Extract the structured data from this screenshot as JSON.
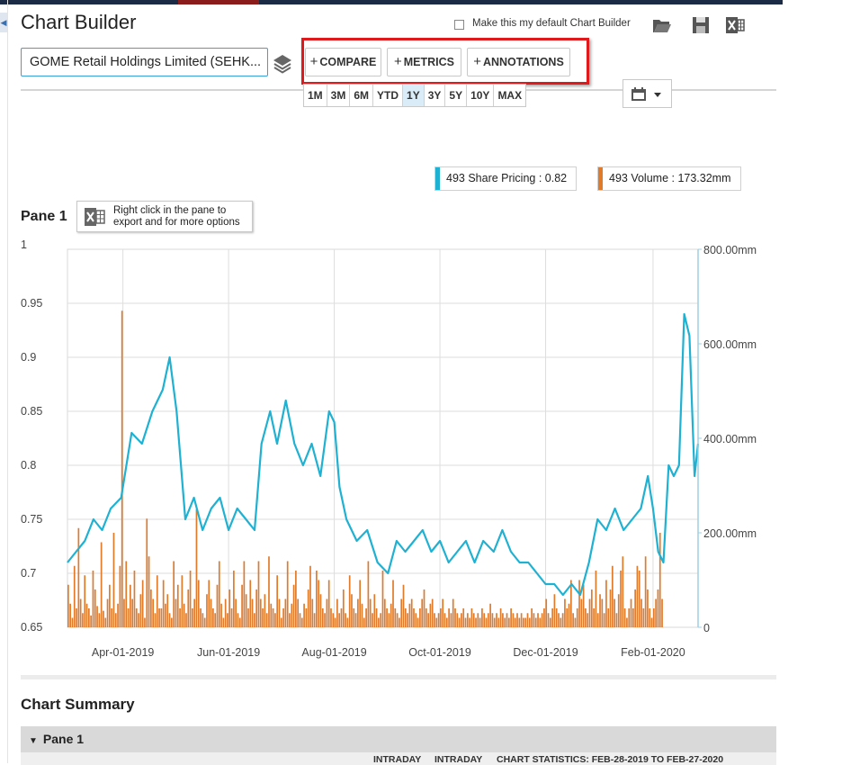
{
  "app": {
    "title": "Chart Builder",
    "default_label": "Make this my default Chart Builder",
    "default_checked": false,
    "tool_icons": [
      "folder-open-icon",
      "save-icon",
      "excel-icon"
    ]
  },
  "toolbar": {
    "company": "GOME Retail Holdings Limited (SEHK...",
    "compare_label": "COMPARE",
    "metrics_label": "METRICS",
    "annotations_label": "ANNOTATIONS",
    "plus": "+",
    "ranges": [
      "1M",
      "3M",
      "6M",
      "YTD",
      "1Y",
      "3Y",
      "5Y",
      "10Y",
      "MAX"
    ],
    "active_range": "1Y"
  },
  "legend": [
    {
      "text": "493 Share Pricing : 0.82",
      "color": "#1fb1d2"
    },
    {
      "text": "493 Volume : 173.32mm",
      "color": "#e07b2c"
    }
  ],
  "pane": {
    "title": "Pane 1",
    "hint": [
      "Right click in the pane to",
      "export and for more options"
    ]
  },
  "chart_data": {
    "type": "line",
    "x_range": [
      "2019-02-28",
      "2020-02-27"
    ],
    "x_ticks": [
      "Apr-01-2019",
      "Jun-01-2019",
      "Aug-01-2019",
      "Oct-01-2019",
      "Dec-01-2019",
      "Feb-01-2020"
    ],
    "y_left": {
      "min": 0.65,
      "max": 1,
      "ticks": [
        "1",
        "0.95",
        "0.9",
        "0.85",
        "0.8",
        "0.75",
        "0.7",
        "0.65"
      ]
    },
    "y_right": {
      "min": 0,
      "max": 800,
      "unit": "mm",
      "ticks": [
        "800.00mm",
        "600.00mm",
        "400.00mm",
        "200.00mm",
        "0"
      ]
    },
    "grid": true,
    "series": [
      {
        "name": "493 Share Pricing",
        "color": "#1fb1d2",
        "axis": "left",
        "dates": [
          "2019-02-28",
          "2019-03-05",
          "2019-03-10",
          "2019-03-15",
          "2019-03-20",
          "2019-03-25",
          "2019-03-31",
          "2019-04-03",
          "2019-04-06",
          "2019-04-12",
          "2019-04-18",
          "2019-04-24",
          "2019-04-28",
          "2019-05-02",
          "2019-05-07",
          "2019-05-12",
          "2019-05-17",
          "2019-05-22",
          "2019-05-27",
          "2019-06-01",
          "2019-06-06",
          "2019-06-11",
          "2019-06-16",
          "2019-06-20",
          "2019-06-25",
          "2019-06-29",
          "2019-07-04",
          "2019-07-09",
          "2019-07-14",
          "2019-07-19",
          "2019-07-24",
          "2019-07-29",
          "2019-08-01",
          "2019-08-04",
          "2019-08-08",
          "2019-08-14",
          "2019-08-20",
          "2019-08-26",
          "2019-09-01",
          "2019-09-06",
          "2019-09-11",
          "2019-09-16",
          "2019-09-21",
          "2019-09-26",
          "2019-10-01",
          "2019-10-06",
          "2019-10-11",
          "2019-10-16",
          "2019-10-21",
          "2019-10-26",
          "2019-11-01",
          "2019-11-06",
          "2019-11-11",
          "2019-11-16",
          "2019-11-21",
          "2019-11-26",
          "2019-12-01",
          "2019-12-06",
          "2019-12-11",
          "2019-12-16",
          "2019-12-21",
          "2019-12-26",
          "2019-12-31",
          "2020-01-05",
          "2020-01-10",
          "2020-01-15",
          "2020-01-20",
          "2020-01-25",
          "2020-01-29",
          "2020-02-01",
          "2020-02-04",
          "2020-02-07",
          "2020-02-10",
          "2020-02-13",
          "2020-02-16",
          "2020-02-19",
          "2020-02-22",
          "2020-02-25",
          "2020-02-27"
        ],
        "values": [
          0.71,
          0.72,
          0.73,
          0.75,
          0.74,
          0.76,
          0.77,
          0.8,
          0.83,
          0.82,
          0.85,
          0.87,
          0.9,
          0.85,
          0.75,
          0.77,
          0.74,
          0.76,
          0.77,
          0.74,
          0.76,
          0.75,
          0.74,
          0.82,
          0.85,
          0.82,
          0.86,
          0.82,
          0.8,
          0.82,
          0.79,
          0.85,
          0.84,
          0.78,
          0.75,
          0.73,
          0.74,
          0.71,
          0.7,
          0.73,
          0.72,
          0.73,
          0.74,
          0.72,
          0.73,
          0.71,
          0.72,
          0.73,
          0.71,
          0.73,
          0.72,
          0.74,
          0.72,
          0.71,
          0.71,
          0.7,
          0.69,
          0.69,
          0.68,
          0.69,
          0.68,
          0.71,
          0.75,
          0.74,
          0.76,
          0.74,
          0.75,
          0.76,
          0.79,
          0.76,
          0.72,
          0.71,
          0.8,
          0.79,
          0.8,
          0.94,
          0.92,
          0.79,
          0.82
        ]
      },
      {
        "name": "493 Volume",
        "color": "#e07b2c",
        "axis": "right",
        "type": "bar",
        "start": "2019-02-28",
        "end": "2020-02-27",
        "values": [
          90,
          50,
          20,
          130,
          40,
          210,
          60,
          30,
          110,
          50,
          40,
          25,
          120,
          80,
          45,
          30,
          180,
          35,
          20,
          60,
          90,
          40,
          200,
          30,
          50,
          130,
          670,
          60,
          140,
          40,
          90,
          60,
          120,
          40,
          30,
          70,
          100,
          20,
          230,
          150,
          80,
          60,
          30,
          110,
          40,
          40,
          100,
          50,
          70,
          30,
          20,
          140,
          60,
          90,
          40,
          110,
          50,
          30,
          80,
          120,
          40,
          60,
          250,
          100,
          40,
          30,
          20,
          70,
          100,
          60,
          40,
          30,
          90,
          140,
          50,
          20,
          60,
          30,
          80,
          40,
          120,
          60,
          30,
          20,
          90,
          140,
          70,
          40,
          100,
          60,
          30,
          80,
          140,
          60,
          40,
          70,
          30,
          150,
          50,
          40,
          30,
          110,
          60,
          20,
          40,
          60,
          140,
          30,
          50,
          90,
          120,
          60,
          30,
          20,
          50,
          40,
          80,
          130,
          60,
          30,
          120,
          100,
          70,
          40,
          30,
          60,
          100,
          40,
          30,
          20,
          60,
          30,
          40,
          80,
          30,
          20,
          110,
          70,
          40,
          30,
          60,
          100,
          50,
          20,
          40,
          140,
          60,
          30,
          70,
          40,
          20,
          30,
          120,
          60,
          40,
          30,
          50,
          100,
          40,
          30,
          20,
          60,
          90,
          40,
          30,
          50,
          60,
          40,
          30,
          20,
          40,
          60,
          80,
          40,
          30,
          50,
          60,
          30,
          20,
          30,
          40,
          60,
          30,
          20,
          40,
          30,
          60,
          40,
          30,
          20,
          30,
          40,
          20,
          30,
          20,
          40,
          30,
          20,
          30,
          20,
          40,
          30,
          20,
          30,
          50,
          30,
          20,
          30,
          20,
          40,
          30,
          20,
          30,
          20,
          40,
          30,
          20,
          30,
          20,
          30,
          20,
          20,
          30,
          20,
          40,
          30,
          20,
          30,
          20,
          30,
          40,
          60,
          30,
          20,
          40,
          70,
          40,
          30,
          20,
          30,
          60,
          40,
          50,
          100,
          30,
          20,
          40,
          100,
          60,
          90,
          40,
          30,
          60,
          80,
          40,
          120,
          30,
          70,
          60,
          30,
          100,
          40,
          80,
          130,
          60,
          30,
          70,
          120,
          150,
          40,
          20,
          40,
          60,
          40,
          80,
          130,
          120,
          60,
          40,
          150,
          80,
          40,
          20,
          40,
          60,
          80,
          200,
          60
        ]
      }
    ]
  },
  "summary": {
    "title": "Chart Summary",
    "pane_label": "Pane 1",
    "header": [
      "INTRADAY",
      "INTRADAY",
      "CHART STATISTICS: FEB-28-2019 TO FEB-27-2020"
    ]
  }
}
